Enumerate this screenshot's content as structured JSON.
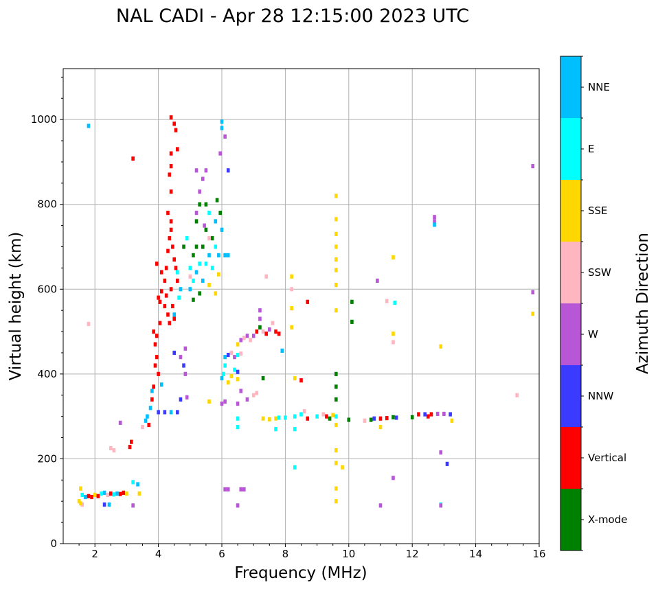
{
  "chart_data": {
    "type": "scatter",
    "title": "NAL CADI - Apr 28 12:15:00 2023 UTC",
    "xlabel": "Frequency (MHz)",
    "ylabel": "Virtual height (km)",
    "xlim": [
      1,
      16
    ],
    "ylim": [
      0,
      1120
    ],
    "xticks": [
      "2",
      "4",
      "6",
      "8",
      "10",
      "12",
      "14",
      "16"
    ],
    "yticks": [
      "0",
      "200",
      "400",
      "600",
      "800",
      "1000"
    ],
    "grid": true,
    "colorbar": {
      "label": "Azimuth Direction",
      "categories": [
        "X-mode",
        "Vertical",
        "NNW",
        "W",
        "SSW",
        "SSE",
        "E",
        "NNE"
      ],
      "colors": [
        "#008000",
        "#ff0000",
        "#3b3bff",
        "#b857d6",
        "#ffb6c1",
        "#ffd700",
        "#00ffff",
        "#00bfff"
      ]
    },
    "point_format": [
      "frequency_MHz",
      "virtual_height_km",
      "direction_index"
    ],
    "points": [
      [
        1.5,
        100,
        5
      ],
      [
        1.55,
        130,
        5
      ],
      [
        1.6,
        115,
        6
      ],
      [
        1.7,
        110,
        7
      ],
      [
        1.8,
        112,
        1
      ],
      [
        1.9,
        110,
        1
      ],
      [
        2.0,
        115,
        5
      ],
      [
        2.1,
        112,
        1
      ],
      [
        2.2,
        118,
        6
      ],
      [
        2.3,
        120,
        7
      ],
      [
        2.4,
        115,
        4
      ],
      [
        2.5,
        118,
        1
      ],
      [
        2.6,
        116,
        6
      ],
      [
        2.7,
        118,
        7
      ],
      [
        2.8,
        117,
        1
      ],
      [
        2.9,
        120,
        1
      ],
      [
        3.0,
        118,
        5
      ],
      [
        3.2,
        145,
        6
      ],
      [
        3.35,
        140,
        7
      ],
      [
        3.4,
        118,
        5
      ],
      [
        2.3,
        92,
        2
      ],
      [
        2.45,
        92,
        7
      ],
      [
        1.6,
        92,
        4
      ],
      [
        1.55,
        95,
        5
      ],
      [
        2.5,
        225,
        4
      ],
      [
        2.6,
        220,
        4
      ],
      [
        3.1,
        228,
        1
      ],
      [
        3.15,
        240,
        1
      ],
      [
        3.2,
        90,
        3
      ],
      [
        3.5,
        275,
        4
      ],
      [
        3.6,
        290,
        7
      ],
      [
        3.65,
        300,
        7
      ],
      [
        3.7,
        280,
        1
      ],
      [
        3.75,
        320,
        7
      ],
      [
        3.8,
        340,
        1
      ],
      [
        3.8,
        360,
        7
      ],
      [
        3.85,
        370,
        1
      ],
      [
        3.9,
        420,
        1
      ],
      [
        3.9,
        470,
        1
      ],
      [
        3.85,
        500,
        1
      ],
      [
        3.95,
        490,
        1
      ],
      [
        3.95,
        440,
        1
      ],
      [
        4.0,
        400,
        1
      ],
      [
        4.1,
        375,
        7
      ],
      [
        4.0,
        310,
        2
      ],
      [
        4.2,
        310,
        2
      ],
      [
        4.4,
        310,
        7
      ],
      [
        4.6,
        310,
        2
      ],
      [
        4.7,
        340,
        2
      ],
      [
        4.9,
        345,
        3
      ],
      [
        4.5,
        450,
        2
      ],
      [
        4.8,
        420,
        2
      ],
      [
        4.85,
        400,
        3
      ],
      [
        3.95,
        660,
        1
      ],
      [
        4.1,
        640,
        1
      ],
      [
        4.05,
        520,
        1
      ],
      [
        4.0,
        580,
        1
      ],
      [
        4.05,
        570,
        1
      ],
      [
        4.1,
        595,
        1
      ],
      [
        4.2,
        560,
        1
      ],
      [
        4.25,
        585,
        1
      ],
      [
        4.3,
        540,
        1
      ],
      [
        4.35,
        520,
        1
      ],
      [
        4.4,
        600,
        1
      ],
      [
        4.45,
        560,
        1
      ],
      [
        4.5,
        530,
        1
      ],
      [
        4.2,
        620,
        1
      ],
      [
        4.25,
        650,
        1
      ],
      [
        4.3,
        690,
        1
      ],
      [
        4.35,
        720,
        1
      ],
      [
        4.4,
        760,
        1
      ],
      [
        4.4,
        740,
        1
      ],
      [
        4.45,
        700,
        1
      ],
      [
        4.3,
        780,
        1
      ],
      [
        4.35,
        870,
        1
      ],
      [
        4.4,
        890,
        1
      ],
      [
        4.4,
        920,
        1
      ],
      [
        4.5,
        990,
        1
      ],
      [
        4.4,
        1005,
        1
      ],
      [
        4.6,
        930,
        1
      ],
      [
        4.55,
        975,
        1
      ],
      [
        4.4,
        830,
        1
      ],
      [
        4.5,
        670,
        1
      ],
      [
        4.55,
        650,
        1
      ],
      [
        4.6,
        620,
        1
      ],
      [
        4.65,
        580,
        6
      ],
      [
        4.5,
        540,
        7
      ],
      [
        4.7,
        600,
        7
      ],
      [
        4.6,
        640,
        6
      ],
      [
        4.8,
        700,
        0
      ],
      [
        4.9,
        720,
        6
      ],
      [
        5.0,
        650,
        6
      ],
      [
        5.0,
        600,
        7
      ],
      [
        5.1,
        680,
        0
      ],
      [
        5.1,
        620,
        6
      ],
      [
        5.2,
        640,
        7
      ],
      [
        5.2,
        700,
        0
      ],
      [
        5.3,
        590,
        0
      ],
      [
        5.3,
        660,
        6
      ],
      [
        5.4,
        620,
        7
      ],
      [
        5.4,
        700,
        0
      ],
      [
        5.5,
        660,
        6
      ],
      [
        5.5,
        740,
        0
      ],
      [
        5.6,
        680,
        7
      ],
      [
        5.6,
        610,
        5
      ],
      [
        5.7,
        720,
        0
      ],
      [
        5.7,
        650,
        6
      ],
      [
        5.8,
        760,
        7
      ],
      [
        5.8,
        700,
        6
      ],
      [
        5.9,
        680,
        7
      ],
      [
        5.95,
        780,
        0
      ],
      [
        6.0,
        740,
        7
      ],
      [
        5.2,
        760,
        0
      ],
      [
        5.3,
        800,
        0
      ],
      [
        5.5,
        800,
        0
      ],
      [
        5.6,
        780,
        6
      ],
      [
        5.3,
        830,
        3
      ],
      [
        5.4,
        860,
        3
      ],
      [
        5.5,
        880,
        3
      ],
      [
        5.45,
        750,
        3
      ],
      [
        5.6,
        720,
        4
      ],
      [
        5.2,
        780,
        3
      ],
      [
        5.85,
        810,
        0
      ],
      [
        5.95,
        920,
        3
      ],
      [
        6.0,
        980,
        7
      ],
      [
        6.0,
        995,
        7
      ],
      [
        6.2,
        880,
        2
      ],
      [
        6.1,
        960,
        3
      ],
      [
        6.1,
        680,
        7
      ],
      [
        6.2,
        680,
        7
      ],
      [
        5.8,
        590,
        5
      ],
      [
        5.9,
        635,
        5
      ],
      [
        5.1,
        575,
        0
      ],
      [
        5.0,
        630,
        4
      ],
      [
        6.0,
        390,
        7
      ],
      [
        6.05,
        400,
        6
      ],
      [
        6.1,
        420,
        6
      ],
      [
        6.1,
        440,
        7
      ],
      [
        6.2,
        445,
        2
      ],
      [
        6.3,
        450,
        4
      ],
      [
        6.4,
        440,
        3
      ],
      [
        6.5,
        445,
        6
      ],
      [
        6.6,
        448,
        4
      ],
      [
        6.5,
        470,
        5
      ],
      [
        6.6,
        480,
        3
      ],
      [
        6.7,
        485,
        4
      ],
      [
        6.8,
        490,
        3
      ],
      [
        6.9,
        480,
        4
      ],
      [
        7.0,
        490,
        3
      ],
      [
        7.1,
        500,
        1
      ],
      [
        7.2,
        510,
        0
      ],
      [
        7.3,
        500,
        4
      ],
      [
        7.4,
        495,
        1
      ],
      [
        7.5,
        505,
        3
      ],
      [
        7.6,
        520,
        4
      ],
      [
        7.7,
        500,
        1
      ],
      [
        7.8,
        495,
        1
      ],
      [
        7.2,
        530,
        3
      ],
      [
        7.2,
        550,
        3
      ],
      [
        6.3,
        395,
        5
      ],
      [
        6.4,
        410,
        6
      ],
      [
        6.2,
        380,
        5
      ],
      [
        6.5,
        388,
        5
      ],
      [
        6.5,
        405,
        2
      ],
      [
        6.8,
        340,
        3
      ],
      [
        7.0,
        350,
        4
      ],
      [
        7.1,
        355,
        4
      ],
      [
        6.6,
        360,
        3
      ],
      [
        6.5,
        330,
        3
      ],
      [
        6.1,
        335,
        3
      ],
      [
        6.5,
        295,
        6
      ],
      [
        6.5,
        275,
        6
      ],
      [
        6.1,
        128,
        3
      ],
      [
        6.2,
        128,
        3
      ],
      [
        6.6,
        128,
        3
      ],
      [
        6.7,
        128,
        3
      ],
      [
        6.5,
        90,
        3
      ],
      [
        6.0,
        330,
        3
      ],
      [
        5.6,
        335,
        5
      ],
      [
        7.3,
        295,
        5
      ],
      [
        7.5,
        293,
        5
      ],
      [
        7.7,
        295,
        5
      ],
      [
        7.8,
        297,
        6
      ],
      [
        8.0,
        297,
        6
      ],
      [
        8.3,
        300,
        6
      ],
      [
        8.5,
        305,
        6
      ],
      [
        8.6,
        312,
        4
      ],
      [
        8.7,
        295,
        1
      ],
      [
        9.0,
        300,
        6
      ],
      [
        9.2,
        305,
        4
      ],
      [
        9.3,
        300,
        1
      ],
      [
        9.4,
        295,
        0
      ],
      [
        9.5,
        303,
        5
      ],
      [
        9.6,
        300,
        6
      ],
      [
        10.0,
        292,
        0
      ],
      [
        10.5,
        290,
        4
      ],
      [
        10.7,
        292,
        0
      ],
      [
        10.8,
        295,
        2
      ],
      [
        11.0,
        295,
        1
      ],
      [
        11.2,
        296,
        1
      ],
      [
        11.4,
        298,
        0
      ],
      [
        12.0,
        298,
        0
      ],
      [
        12.2,
        305,
        1
      ],
      [
        12.4,
        305,
        2
      ],
      [
        12.6,
        305,
        1
      ],
      [
        12.8,
        306,
        3
      ],
      [
        13.0,
        306,
        3
      ],
      [
        13.2,
        305,
        2
      ],
      [
        13.25,
        290,
        5
      ],
      [
        12.5,
        300,
        1
      ],
      [
        11.5,
        297,
        2
      ],
      [
        8.2,
        630,
        5
      ],
      [
        8.2,
        600,
        4
      ],
      [
        8.2,
        555,
        5
      ],
      [
        8.2,
        510,
        5
      ],
      [
        8.7,
        570,
        1
      ],
      [
        8.5,
        385,
        1
      ],
      [
        8.3,
        390,
        5
      ],
      [
        9.6,
        820,
        5
      ],
      [
        9.6,
        765,
        5
      ],
      [
        9.6,
        730,
        5
      ],
      [
        9.6,
        700,
        5
      ],
      [
        9.6,
        670,
        5
      ],
      [
        9.6,
        645,
        5
      ],
      [
        9.6,
        610,
        5
      ],
      [
        9.6,
        550,
        5
      ],
      [
        9.6,
        400,
        0
      ],
      [
        9.6,
        370,
        0
      ],
      [
        9.6,
        340,
        0
      ],
      [
        9.6,
        280,
        5
      ],
      [
        9.6,
        220,
        5
      ],
      [
        9.6,
        190,
        5
      ],
      [
        9.6,
        130,
        5
      ],
      [
        9.6,
        100,
        5
      ],
      [
        9.8,
        180,
        5
      ],
      [
        10.1,
        570,
        0
      ],
      [
        10.1,
        523,
        0
      ],
      [
        10.9,
        620,
        3
      ],
      [
        11.2,
        572,
        4
      ],
      [
        11.45,
        568,
        6
      ],
      [
        11.4,
        675,
        5
      ],
      [
        11.4,
        495,
        5
      ],
      [
        11.4,
        475,
        4
      ],
      [
        11.4,
        155,
        3
      ],
      [
        11.0,
        90,
        3
      ],
      [
        11.0,
        275,
        5
      ],
      [
        12.7,
        770,
        3
      ],
      [
        12.7,
        760,
        3
      ],
      [
        12.7,
        752,
        7
      ],
      [
        12.9,
        465,
        5
      ],
      [
        12.9,
        215,
        3
      ],
      [
        13.1,
        188,
        2
      ],
      [
        12.9,
        92,
        6
      ],
      [
        12.9,
        90,
        3
      ],
      [
        15.8,
        890,
        3
      ],
      [
        15.8,
        593,
        3
      ],
      [
        15.8,
        542,
        5
      ],
      [
        15.3,
        350,
        4
      ],
      [
        8.3,
        180,
        6
      ],
      [
        8.3,
        270,
        6
      ],
      [
        7.7,
        270,
        6
      ],
      [
        7.9,
        455,
        7
      ],
      [
        7.3,
        390,
        0
      ],
      [
        7.4,
        630,
        4
      ],
      [
        3.2,
        908,
        1
      ],
      [
        1.8,
        985,
        7
      ],
      [
        1.8,
        518,
        4
      ],
      [
        2.8,
        285,
        3
      ],
      [
        4.7,
        440,
        3
      ],
      [
        4.85,
        460,
        3
      ],
      [
        5.2,
        880,
        3
      ]
    ]
  }
}
